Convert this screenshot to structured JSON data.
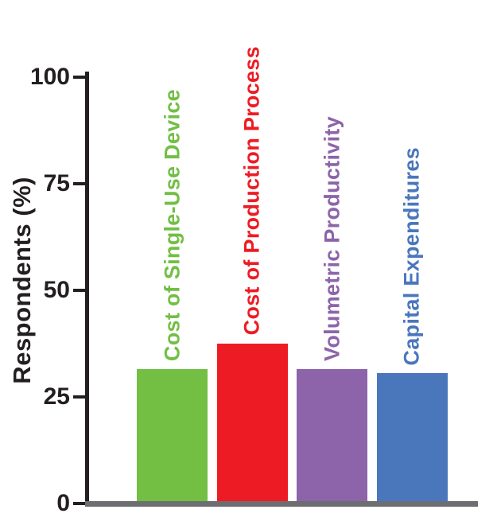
{
  "chart_data": {
    "type": "bar",
    "title": "",
    "xlabel": "",
    "ylabel": "Respondents (%)",
    "categories": [
      "Cost of Single-Use Device",
      "Cost of Production Process",
      "Volumetric Productivity",
      "Capital Expenditures"
    ],
    "values": [
      31,
      37,
      31,
      30
    ],
    "colors": [
      "#72bf44",
      "#ed1c24",
      "#8d64aa",
      "#4a77bc"
    ],
    "yticks": [
      0,
      25,
      50,
      75,
      100
    ],
    "ylim": [
      0,
      100
    ],
    "grid": "off",
    "legend": "none",
    "label_position": "above-bars-vertical"
  }
}
